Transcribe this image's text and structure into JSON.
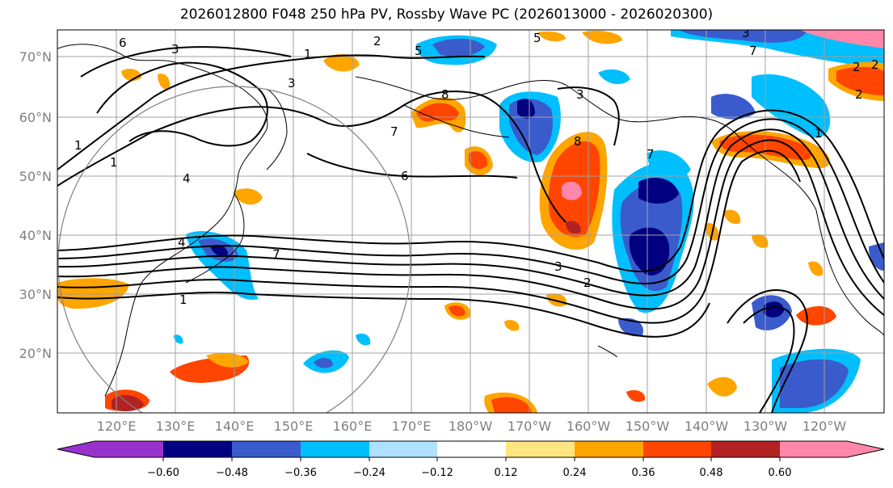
{
  "title": "2026012800 F048 250 hPa PV, Rossby Wave PC (2026013000 - 2026020300)",
  "lat_labels": [
    "70°N",
    "60°N",
    "50°N",
    "40°N",
    "30°N",
    "20°N"
  ],
  "lon_labels": [
    "120°E",
    "130°E",
    "140°E",
    "150°E",
    "160°E",
    "170°E",
    "180°W",
    "170°W",
    "160°W",
    "150°W",
    "140°W",
    "130°W",
    "120°W"
  ],
  "colorbar": {
    "tick_labels": [
      "−0.60",
      "−0.48",
      "−0.36",
      "−0.24",
      "−0.12",
      "0.12",
      "0.24",
      "0.36",
      "0.48",
      "0.60"
    ],
    "colors": [
      "#9932cc",
      "#000080",
      "#3a5bcc",
      "#00bfff",
      "#b0e0ff",
      "#ffffff",
      "#ffe680",
      "#ffa500",
      "#ff4500",
      "#b22222",
      "#ff88aa"
    ]
  },
  "contour_labels": [
    "1",
    "2",
    "3",
    "4",
    "5",
    "6",
    "7",
    "8",
    "7",
    "6",
    "4",
    "3",
    "2",
    "1",
    "7",
    "3",
    "2",
    "1",
    "5",
    "3",
    "2",
    "1",
    "8",
    "7",
    "3",
    "2",
    "1"
  ]
}
